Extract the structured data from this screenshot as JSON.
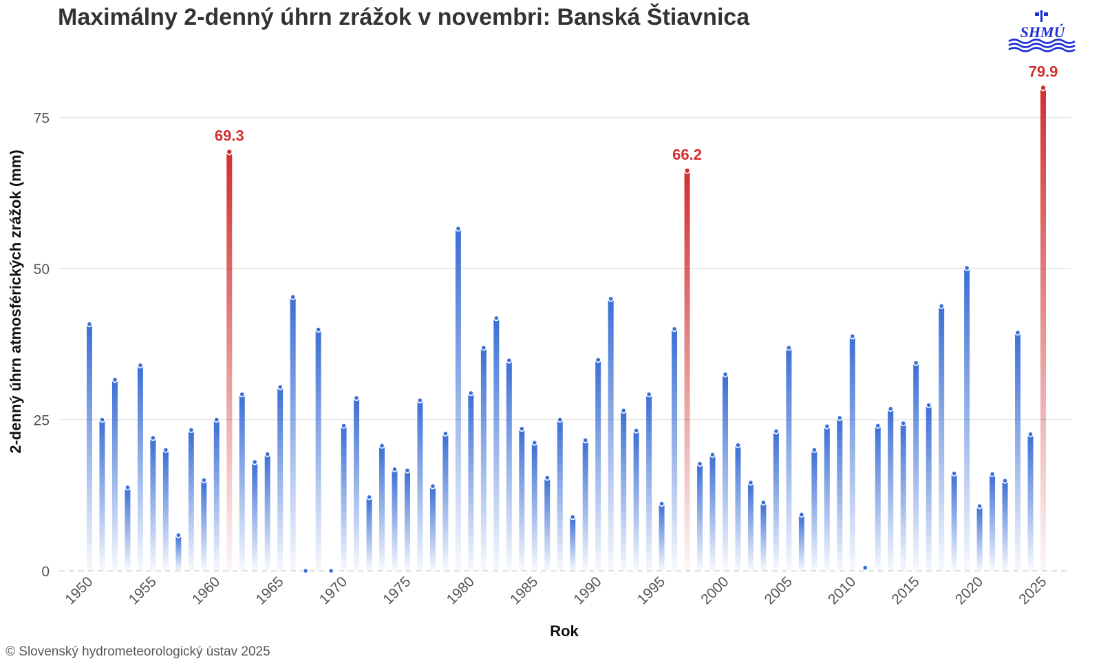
{
  "chart_data": {
    "type": "bar",
    "title": "Maximálny 2-denný úhrn zrážok v novembri: Banská Štiavnica",
    "xlabel": "Rok",
    "ylabel": "2-denný úhrn atmosférických zrážok (mm)",
    "ylim": [
      0,
      82
    ],
    "yticks": [
      0,
      25,
      50,
      75
    ],
    "xticks": [
      1950,
      1955,
      1960,
      1965,
      1970,
      1975,
      1980,
      1985,
      1990,
      1995,
      2000,
      2005,
      2010,
      2015,
      2020,
      2025
    ],
    "grid": true,
    "colors": {
      "normal": "#3b6fd6",
      "record": "#d32f2f"
    },
    "data_label_color": "#d32f2f",
    "records": [
      1961,
      1997,
      2025
    ],
    "x": [
      1950,
      1951,
      1952,
      1953,
      1954,
      1955,
      1956,
      1957,
      1958,
      1959,
      1960,
      1961,
      1962,
      1963,
      1964,
      1965,
      1966,
      1967,
      1968,
      1969,
      1970,
      1971,
      1972,
      1973,
      1974,
      1975,
      1976,
      1977,
      1978,
      1979,
      1980,
      1981,
      1982,
      1983,
      1984,
      1985,
      1986,
      1987,
      1988,
      1989,
      1990,
      1991,
      1992,
      1993,
      1994,
      1995,
      1996,
      1997,
      1998,
      1999,
      2000,
      2001,
      2002,
      2003,
      2004,
      2005,
      2006,
      2007,
      2008,
      2009,
      2010,
      2011,
      2012,
      2013,
      2014,
      2015,
      2016,
      2017,
      2018,
      2019,
      2020,
      2021,
      2022,
      2023,
      2024,
      2025
    ],
    "values": [
      40.8,
      25.0,
      31.6,
      13.8,
      34.0,
      22.0,
      20.0,
      5.9,
      23.3,
      15.0,
      25.0,
      69.3,
      29.2,
      18.0,
      19.3,
      30.4,
      45.3,
      0.0,
      39.9,
      0.0,
      24.0,
      28.6,
      12.2,
      20.7,
      16.8,
      16.6,
      28.2,
      14.0,
      22.7,
      56.6,
      29.4,
      36.9,
      41.8,
      34.8,
      23.5,
      21.2,
      15.4,
      25.0,
      8.9,
      21.6,
      34.9,
      45.0,
      26.5,
      23.2,
      29.2,
      11.1,
      40.0,
      66.2,
      17.7,
      19.2,
      32.5,
      20.8,
      14.6,
      11.3,
      23.1,
      36.9,
      9.3,
      20.0,
      23.9,
      25.3,
      38.8,
      0.5,
      24.0,
      26.8,
      24.4,
      34.4,
      27.4,
      43.8,
      16.1,
      50.1,
      10.7,
      16.0,
      14.9,
      39.4,
      22.6,
      79.9
    ]
  },
  "footer": "© Slovenský hydrometeorologický ústav 2025",
  "logo": {
    "text": "SHMÚ",
    "color": "#1a2fd6"
  }
}
